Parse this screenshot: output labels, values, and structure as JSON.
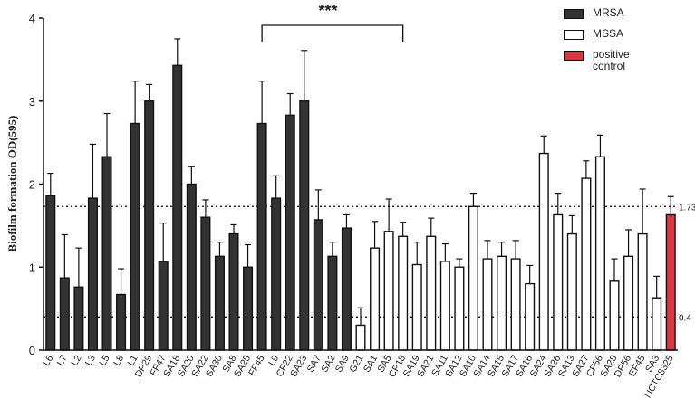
{
  "chart_data": {
    "type": "bar",
    "y_label": "Biofilm formation OD(595)",
    "categories": [
      "L6",
      "L7",
      "L2",
      "L3",
      "L5",
      "L8",
      "L1",
      "DP29",
      "FF47",
      "SA18",
      "SA20",
      "SA22",
      "SA30",
      "SA8",
      "SA25",
      "FF45",
      "L9",
      "CF22",
      "SA23",
      "SA7",
      "SA2",
      "SA9",
      "G21",
      "SA1",
      "SA5",
      "CP18",
      "SA19",
      "SA21",
      "SA11",
      "SA12",
      "SA10",
      "SA14",
      "SA15",
      "SA17",
      "SA16",
      "SA24",
      "SA26",
      "SA13",
      "SA27",
      "CF56",
      "SA28",
      "DP56",
      "EF45",
      "SA3",
      "NCTC8325"
    ],
    "series": [
      {
        "name": "MRSA",
        "color": "#333333",
        "values": [
          1.86,
          0.87,
          0.76,
          1.83,
          2.33,
          0.67,
          2.73,
          3.0,
          1.07,
          3.43,
          2.0,
          1.6,
          1.13,
          1.4,
          1.0,
          2.73,
          1.83,
          2.83,
          3.0,
          1.57,
          1.13,
          1.47,
          null,
          null,
          null,
          null,
          null,
          null,
          null,
          null,
          null,
          null,
          null,
          null,
          null,
          null,
          null,
          null,
          null,
          null,
          null,
          null,
          null,
          null,
          null
        ],
        "errors": [
          0.27,
          0.52,
          0.47,
          0.65,
          0.52,
          0.31,
          0.51,
          0.2,
          0.46,
          0.32,
          0.21,
          0.21,
          0.17,
          0.11,
          0.27,
          0.51,
          0.27,
          0.26,
          0.61,
          0.36,
          0.17,
          0.16,
          null,
          null,
          null,
          null,
          null,
          null,
          null,
          null,
          null,
          null,
          null,
          null,
          null,
          null,
          null,
          null,
          null,
          null,
          null,
          null,
          null,
          null,
          null
        ]
      },
      {
        "name": "MSSA",
        "color": "#ffffff",
        "values": [
          null,
          null,
          null,
          null,
          null,
          null,
          null,
          null,
          null,
          null,
          null,
          null,
          null,
          null,
          null,
          null,
          null,
          null,
          null,
          null,
          null,
          null,
          0.3,
          1.23,
          1.43,
          1.37,
          1.03,
          1.37,
          1.07,
          1.0,
          1.73,
          1.1,
          1.13,
          1.1,
          0.8,
          2.37,
          1.63,
          1.4,
          2.07,
          2.33,
          0.83,
          1.13,
          1.4,
          0.63,
          null
        ],
        "errors": [
          null,
          null,
          null,
          null,
          null,
          null,
          null,
          null,
          null,
          null,
          null,
          null,
          null,
          null,
          null,
          null,
          null,
          null,
          null,
          null,
          null,
          null,
          0.21,
          0.32,
          0.39,
          0.17,
          0.27,
          0.22,
          0.21,
          0.1,
          0.16,
          0.22,
          0.17,
          0.22,
          0.22,
          0.21,
          0.26,
          0.22,
          0.21,
          0.26,
          0.27,
          0.32,
          0.54,
          0.26,
          null
        ]
      },
      {
        "name": "positive control",
        "color": "#d9363e",
        "values": [
          null,
          null,
          null,
          null,
          null,
          null,
          null,
          null,
          null,
          null,
          null,
          null,
          null,
          null,
          null,
          null,
          null,
          null,
          null,
          null,
          null,
          null,
          null,
          null,
          null,
          null,
          null,
          null,
          null,
          null,
          null,
          null,
          null,
          null,
          null,
          null,
          null,
          null,
          null,
          null,
          null,
          null,
          null,
          null,
          1.63
        ],
        "errors": [
          null,
          null,
          null,
          null,
          null,
          null,
          null,
          null,
          null,
          null,
          null,
          null,
          null,
          null,
          null,
          null,
          null,
          null,
          null,
          null,
          null,
          null,
          null,
          null,
          null,
          null,
          null,
          null,
          null,
          null,
          null,
          null,
          null,
          null,
          null,
          null,
          null,
          null,
          null,
          null,
          null,
          null,
          null,
          null,
          0.22
        ]
      }
    ],
    "ylim": [
      0,
      4
    ],
    "yticks": [
      0,
      1,
      2,
      3,
      4
    ],
    "hlines": [
      1.73,
      0.4
    ],
    "annotation": "***"
  }
}
